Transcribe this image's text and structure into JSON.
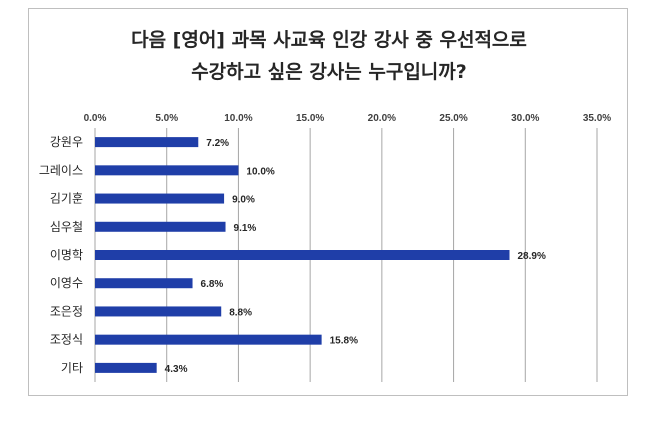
{
  "chart_data": {
    "type": "bar",
    "orientation": "horizontal",
    "title": [
      "다음 [영어] 과목 사교육 인강 강사 중 우선적으로",
      "수강하고 싶은 강사는 누구입니까?"
    ],
    "categories": [
      "강원우",
      "그레이스",
      "김기훈",
      "심우철",
      "이명학",
      "이영수",
      "조은정",
      "조정식",
      "기타"
    ],
    "values": [
      7.2,
      10.0,
      9.0,
      9.1,
      28.9,
      6.8,
      8.8,
      15.8,
      4.3
    ],
    "value_labels": [
      "7.2%",
      "10.0%",
      "9.0%",
      "9.1%",
      "28.9%",
      "6.8%",
      "8.8%",
      "15.8%",
      "4.3%"
    ],
    "xlim": [
      0,
      35
    ],
    "xticks": [
      "0.0%",
      "5.0%",
      "10.0%",
      "15.0%",
      "20.0%",
      "25.0%",
      "30.0%",
      "35.0%"
    ],
    "axis_position": "top",
    "grid": true,
    "bar_color": "#1f3ea8",
    "grid_color": "#a6a6a6"
  }
}
